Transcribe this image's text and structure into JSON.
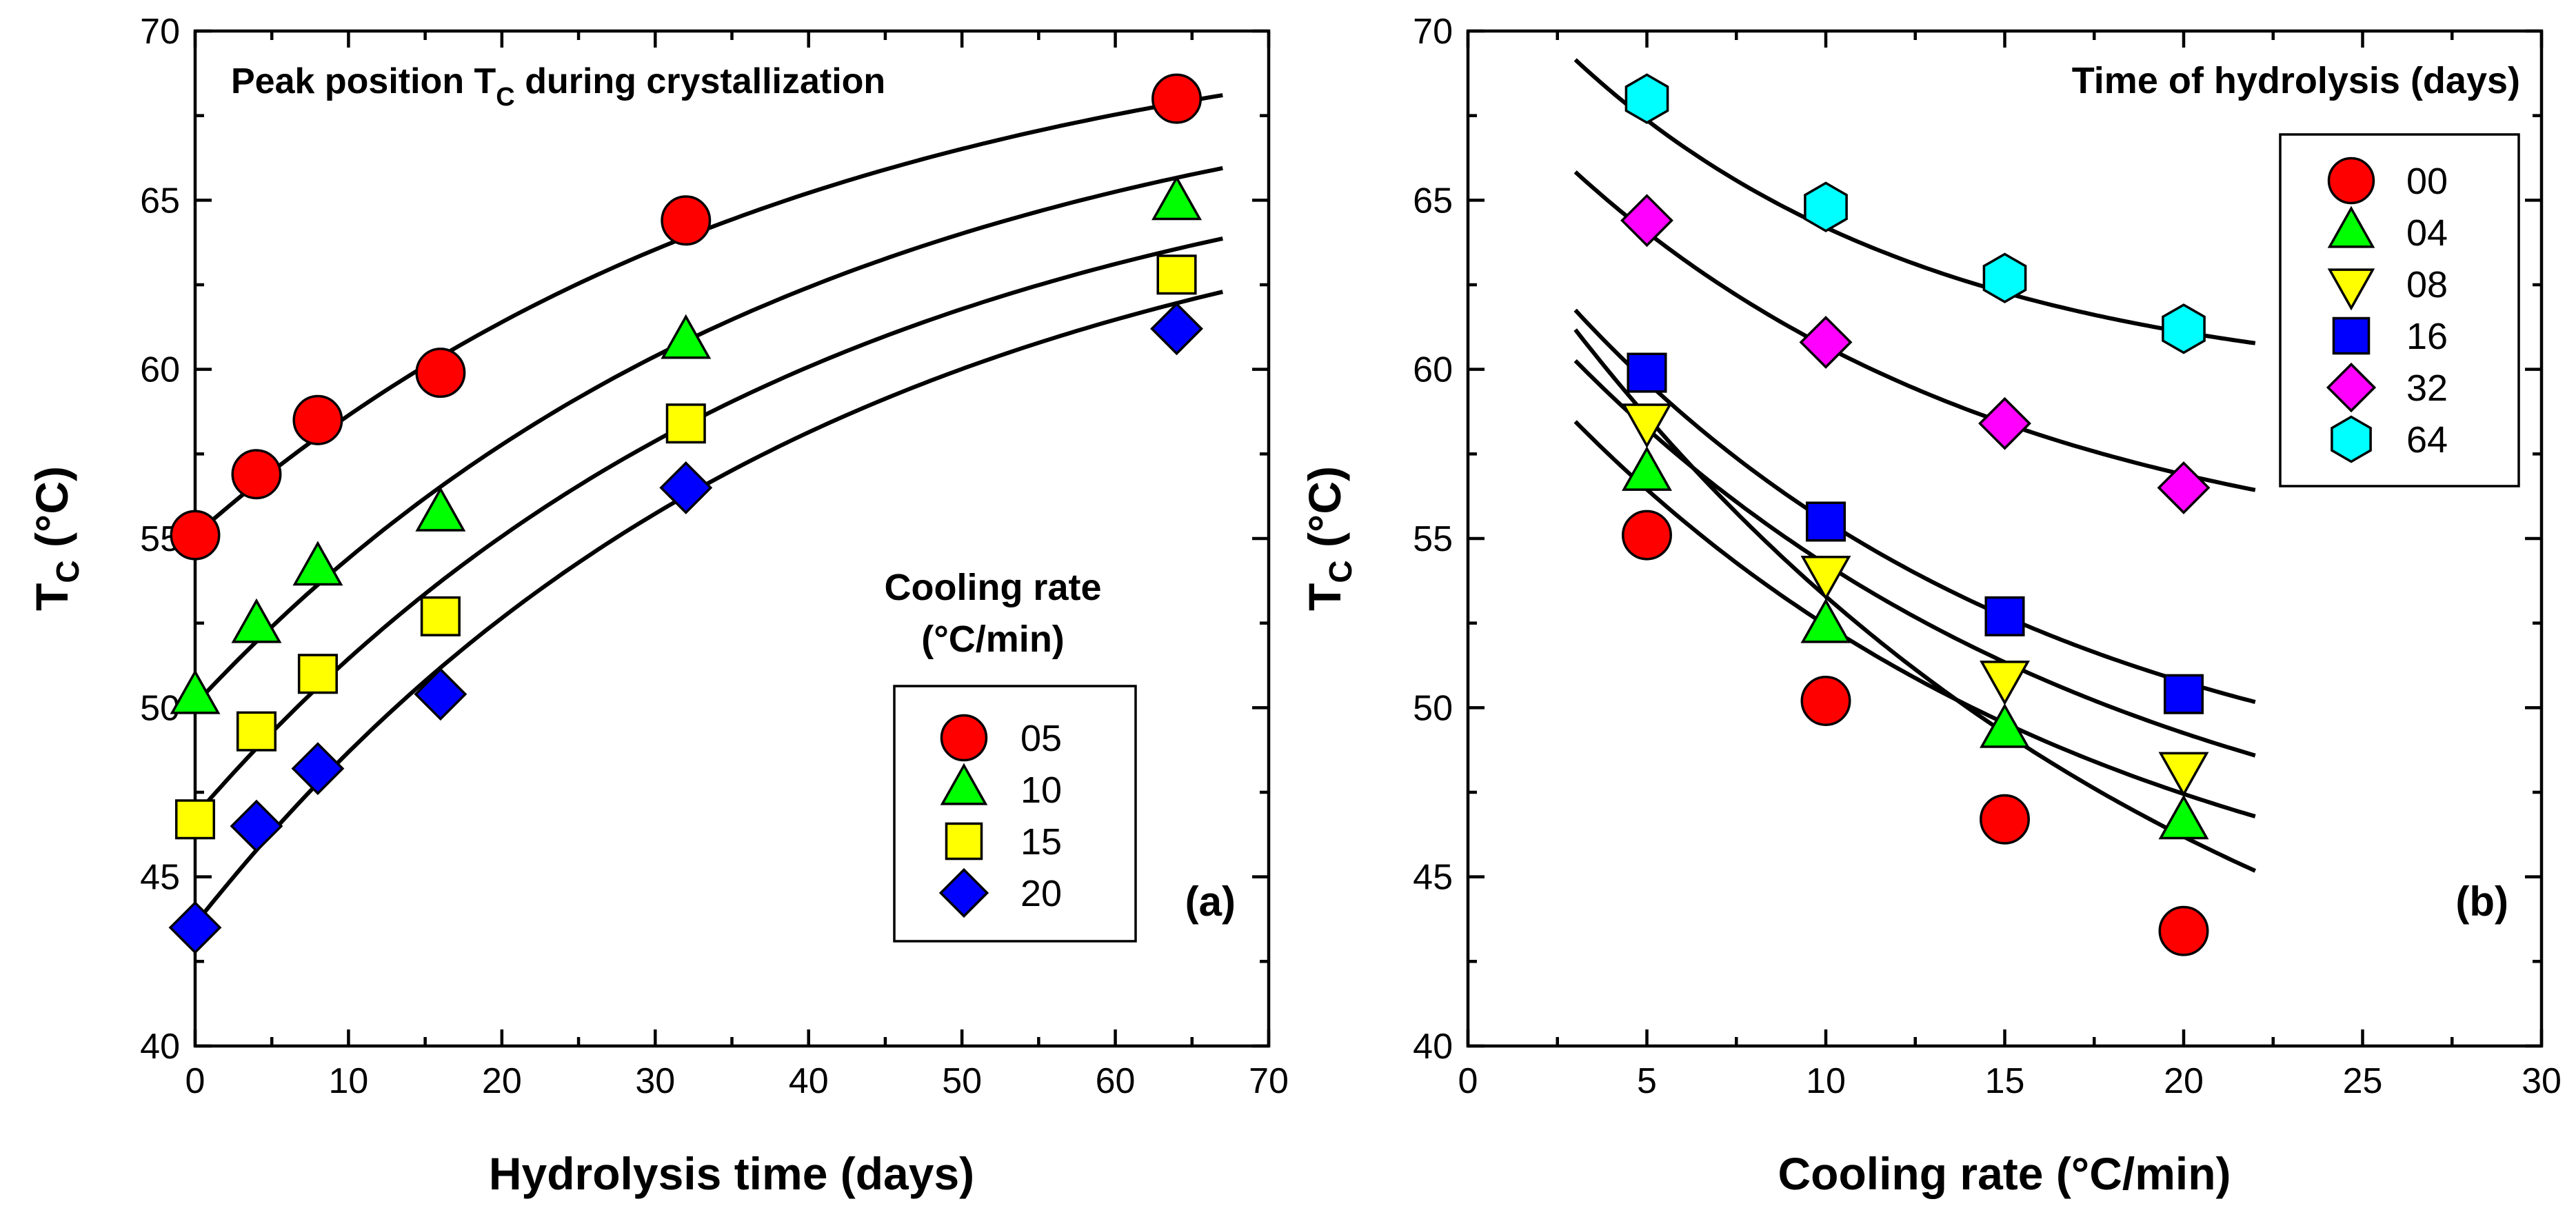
{
  "chart_data": [
    {
      "type": "scatter",
      "panel": "(a)",
      "title_main": "Peak position T",
      "title_sub": "C",
      "title_rest": " during crystallization",
      "xlabel": "Hydrolysis time (days)",
      "ylabel_main": "T",
      "ylabel_sub": "C",
      "ylabel_rest": " (°C)",
      "xlim": [
        0,
        70
      ],
      "ylim": [
        40,
        70
      ],
      "xticks": [
        0,
        10,
        20,
        30,
        40,
        50,
        60,
        70
      ],
      "yticks": [
        40,
        45,
        50,
        55,
        60,
        65,
        70
      ],
      "legend_title_line1": "Cooling rate",
      "legend_title_line2": "(°C/min)",
      "legend_position": "center-right",
      "fit_curve_xrange": [
        0,
        67
      ],
      "series": [
        {
          "name": "05",
          "marker": "circle",
          "color": "#ff0000",
          "x": [
            0,
            4,
            8,
            16,
            32,
            64
          ],
          "y": [
            55.1,
            56.9,
            58.5,
            59.9,
            64.4,
            68.0
          ],
          "fit": {
            "a": 55.1,
            "b": 16.0,
            "tau": 40
          }
        },
        {
          "name": "10",
          "marker": "triangle-up",
          "color": "#00ff00",
          "x": [
            0,
            4,
            8,
            16,
            32,
            64
          ],
          "y": [
            50.3,
            52.4,
            54.1,
            55.7,
            60.8,
            64.9
          ],
          "fit": {
            "a": 50.1,
            "b": 19.5,
            "tau": 40
          }
        },
        {
          "name": "15",
          "marker": "square",
          "color": "#ffff00",
          "x": [
            0,
            4,
            8,
            16,
            32,
            64
          ],
          "y": [
            46.7,
            49.3,
            51.0,
            52.7,
            58.4,
            62.8
          ],
          "fit": {
            "a": 46.8,
            "b": 21.0,
            "tau": 40
          }
        },
        {
          "name": "20",
          "marker": "diamond",
          "color": "#0000ff",
          "x": [
            0,
            4,
            8,
            16,
            32,
            64
          ],
          "y": [
            43.5,
            46.5,
            48.2,
            50.4,
            56.5,
            61.2
          ],
          "fit": {
            "a": 43.6,
            "b": 23.0,
            "tau": 40
          }
        }
      ]
    },
    {
      "type": "scatter",
      "panel": "(b)",
      "xlabel": "Cooling rate (°C/min)",
      "ylabel_main": "T",
      "ylabel_sub": "C",
      "ylabel_rest": " (°C)",
      "xlim": [
        0,
        30
      ],
      "ylim": [
        40,
        70
      ],
      "xticks": [
        0,
        5,
        10,
        15,
        20,
        25,
        30
      ],
      "yticks": [
        40,
        45,
        50,
        55,
        60,
        65,
        70
      ],
      "legend_title": "Time of hydrolysis (days)",
      "legend_position": "top-right",
      "fit_curve_xrange": [
        3,
        22
      ],
      "series": [
        {
          "name": "00",
          "marker": "circle",
          "color": "#ff0000",
          "x": [
            5,
            10,
            15,
            20
          ],
          "y": [
            55.1,
            50.2,
            46.7,
            43.4
          ],
          "fit": {
            "c": 36.5,
            "d": 29.1,
            "k": 0.055
          }
        },
        {
          "name": "04",
          "marker": "triangle-up",
          "color": "#00ff00",
          "x": [
            5,
            10,
            15,
            20
          ],
          "y": [
            56.9,
            52.4,
            49.3,
            46.6
          ],
          "fit": {
            "c": 42.0,
            "d": 20.0,
            "k": 0.065
          }
        },
        {
          "name": "08",
          "marker": "triangle-down",
          "color": "#ffff00",
          "x": [
            5,
            10,
            15,
            20
          ],
          "y": [
            58.5,
            54.0,
            50.9,
            48.2
          ],
          "fit": {
            "c": 43.8,
            "d": 20.0,
            "k": 0.065
          }
        },
        {
          "name": "16",
          "marker": "square",
          "color": "#0000ff",
          "x": [
            5,
            10,
            15,
            20
          ],
          "y": [
            59.9,
            55.5,
            52.7,
            50.4
          ],
          "fit": {
            "c": 46.5,
            "d": 19.1,
            "k": 0.075
          }
        },
        {
          "name": "32",
          "marker": "diamond",
          "color": "#ff00ff",
          "x": [
            5,
            10,
            15,
            20
          ],
          "y": [
            64.4,
            60.8,
            58.4,
            56.5
          ],
          "fit": {
            "c": 53.8,
            "d": 15.3,
            "k": 0.08
          }
        },
        {
          "name": "64",
          "marker": "hexagon",
          "color": "#00ffff",
          "x": [
            5,
            10,
            15,
            20
          ],
          "y": [
            68.0,
            64.8,
            62.7,
            61.2
          ],
          "fit": {
            "c": 59.3,
            "d": 13.3,
            "k": 0.1
          }
        }
      ]
    }
  ]
}
